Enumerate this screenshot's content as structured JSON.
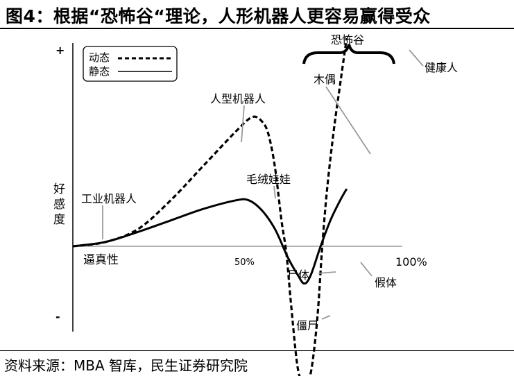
{
  "title": "图4：根据“恐怖谷“理论，人形机器人更容易赢得受众",
  "source": "资料来源：MBA 智库，民生证券研究院",
  "chart_data": {
    "type": "line",
    "xlabel": "逼真性",
    "ylabel": "好感度",
    "y_top_symbol": "+",
    "y_bottom_symbol": "-",
    "x_tick_labels": [
      "50%",
      "100%"
    ],
    "legend": [
      {
        "name": "动态",
        "style": "dashed"
      },
      {
        "name": "静态",
        "style": "solid"
      }
    ],
    "series": [
      {
        "name": "动态",
        "points": [
          [
            0,
            0
          ],
          [
            10,
            0.03
          ],
          [
            20,
            0.12
          ],
          [
            30,
            0.32
          ],
          [
            40,
            0.56
          ],
          [
            50,
            0.8
          ],
          [
            55,
            0.9
          ],
          [
            58,
            0.87
          ],
          [
            60,
            0.78
          ],
          [
            62,
            0.55
          ],
          [
            64,
            0.18
          ],
          [
            65.5,
            -0.05
          ],
          [
            67,
            -0.42
          ],
          [
            69,
            -0.85
          ],
          [
            71,
            -0.95
          ],
          [
            73,
            -0.88
          ],
          [
            75,
            -0.5
          ],
          [
            76.5,
            0
          ],
          [
            78,
            0.4
          ],
          [
            80,
            0.8
          ],
          [
            82,
            1.13
          ],
          [
            84,
            1.45
          ]
        ]
      },
      {
        "name": "静态",
        "points": [
          [
            0,
            0
          ],
          [
            10,
            0.03
          ],
          [
            20,
            0.1
          ],
          [
            30,
            0.18
          ],
          [
            40,
            0.26
          ],
          [
            50,
            0.32
          ],
          [
            54,
            0.32
          ],
          [
            58,
            0.25
          ],
          [
            62,
            0.12
          ],
          [
            66,
            -0.08
          ],
          [
            69,
            -0.2
          ],
          [
            71,
            -0.26
          ],
          [
            73,
            -0.2
          ],
          [
            76,
            0
          ],
          [
            79,
            0.18
          ],
          [
            82,
            0.32
          ],
          [
            84,
            0.4
          ]
        ]
      }
    ],
    "annotations": [
      {
        "text": "恐怖谷",
        "type": "brace"
      },
      {
        "text": "木偶"
      },
      {
        "text": "健康人"
      },
      {
        "text": "人型机器人"
      },
      {
        "text": "毛绒娃娃"
      },
      {
        "text": "工业机器人"
      },
      {
        "text": "尸体"
      },
      {
        "text": "假体"
      },
      {
        "text": "僵尸"
      }
    ]
  }
}
